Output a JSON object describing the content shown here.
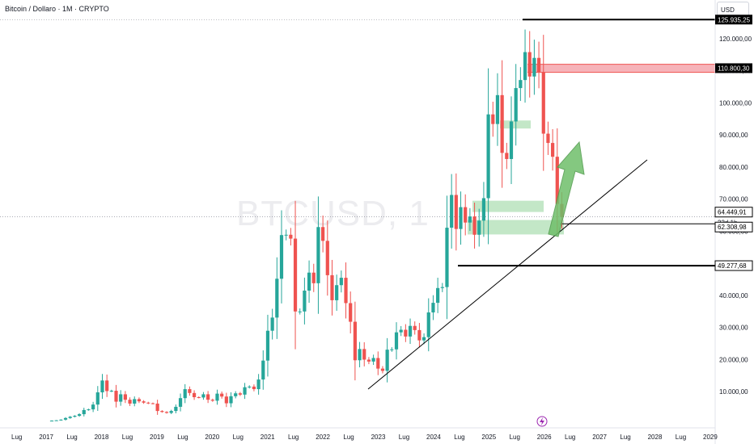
{
  "header": {
    "title": "Bitcoin / Dollaro · 1M · CRYPTO",
    "currency_button": "USD",
    "watermark": "BTCUSD, 1"
  },
  "chart_data": {
    "type": "candlestick",
    "symbol": "BTCUSD",
    "timeframe": "1M",
    "x_tick_labels": [
      "Lug",
      "2017",
      "Lug",
      "2018",
      "Lug",
      "2019",
      "Lug",
      "2020",
      "Lug",
      "2021",
      "Lug",
      "2022",
      "Lug",
      "2023",
      "Lug",
      "2024",
      "Lug",
      "2025",
      "Lug",
      "2026",
      "Lug",
      "2027",
      "Lug",
      "2028",
      "Lug",
      "2029"
    ],
    "y_ticks": [
      10000,
      20000,
      30000,
      40000,
      50000,
      60000,
      70000,
      80000,
      90000,
      100000,
      110000,
      120000
    ],
    "y_tick_labels": [
      "10.000,00",
      "20.000,00",
      "30.000,00",
      "40.000,00",
      "50.000,00",
      "60.000,00",
      "70.000,00",
      "80.000,00",
      "90.000,00",
      "100.000,00",
      "110.000,00",
      "120.000,00"
    ],
    "ylim": [
      0,
      126000
    ],
    "candles_close": [
      1000,
      1100,
      1300,
      1800,
      2200,
      2500,
      3000,
      4300,
      4500,
      6000,
      9800,
      13500,
      10200,
      10300,
      6900,
      9200,
      7500,
      6300,
      7700,
      7000,
      6600,
      6400,
      6300,
      4000,
      3700,
      3400,
      4000,
      5300,
      8000,
      10800,
      9600,
      8300,
      8200,
      9200,
      7500,
      7200,
      9400,
      8500,
      6400,
      8600,
      9500,
      9100,
      11400,
      11600,
      10800,
      13800,
      19700,
      29000,
      33100,
      45200,
      58800,
      58900,
      57700,
      35000,
      35000,
      41500,
      47100,
      43800,
      61300,
      57000,
      46300,
      38500,
      43200,
      45500,
      37600,
      31800,
      19800,
      23300,
      20000,
      19400,
      20500,
      17200,
      16500,
      23100,
      23200,
      28500,
      29300,
      27200,
      30500,
      29200,
      26000,
      27000,
      34700,
      37700,
      42300,
      42600,
      61100,
      71300,
      60700,
      67500,
      62700,
      64600,
      58900,
      63300,
      70300,
      96400,
      93400,
      102400,
      84400,
      82500,
      94200,
      104600,
      107100,
      115800,
      108200,
      114000,
      109600,
      90400,
      87500,
      83200,
      68500,
      64450
    ],
    "price_labels": {
      "top_high": "125.935,25",
      "resistance": "110.800,30",
      "current_price": "64.449,91",
      "countdown": "23d 1h",
      "support_near": "62.308,98",
      "support_low": "49.277,68"
    },
    "levels": {
      "top_high": 125935.25,
      "resistance": 110800.3,
      "current_price": 64449.91,
      "support_near": 62308.98,
      "support_low": 49277.68
    },
    "zones": [
      {
        "name": "resistance-zone",
        "from": 109500,
        "to": 112000,
        "color": "#f4a6ad"
      },
      {
        "name": "green-zone-upper",
        "from": 92000,
        "to": 94500,
        "color": "#b9e3bd"
      },
      {
        "name": "green-zone-mid",
        "from": 66000,
        "to": 69500,
        "color": "#b9e3bd"
      },
      {
        "name": "green-zone-low",
        "from": 59000,
        "to": 63500,
        "color": "#b9e3bd"
      }
    ],
    "annotations": {
      "trendline": "rising support trendline",
      "arrow": "green up arrow"
    },
    "colors": {
      "up": "#26a69a",
      "down": "#ef5350",
      "zone_green": "#b9e3bd",
      "zone_red": "#f4a6ad",
      "arrow": "#6fbf6a"
    }
  }
}
